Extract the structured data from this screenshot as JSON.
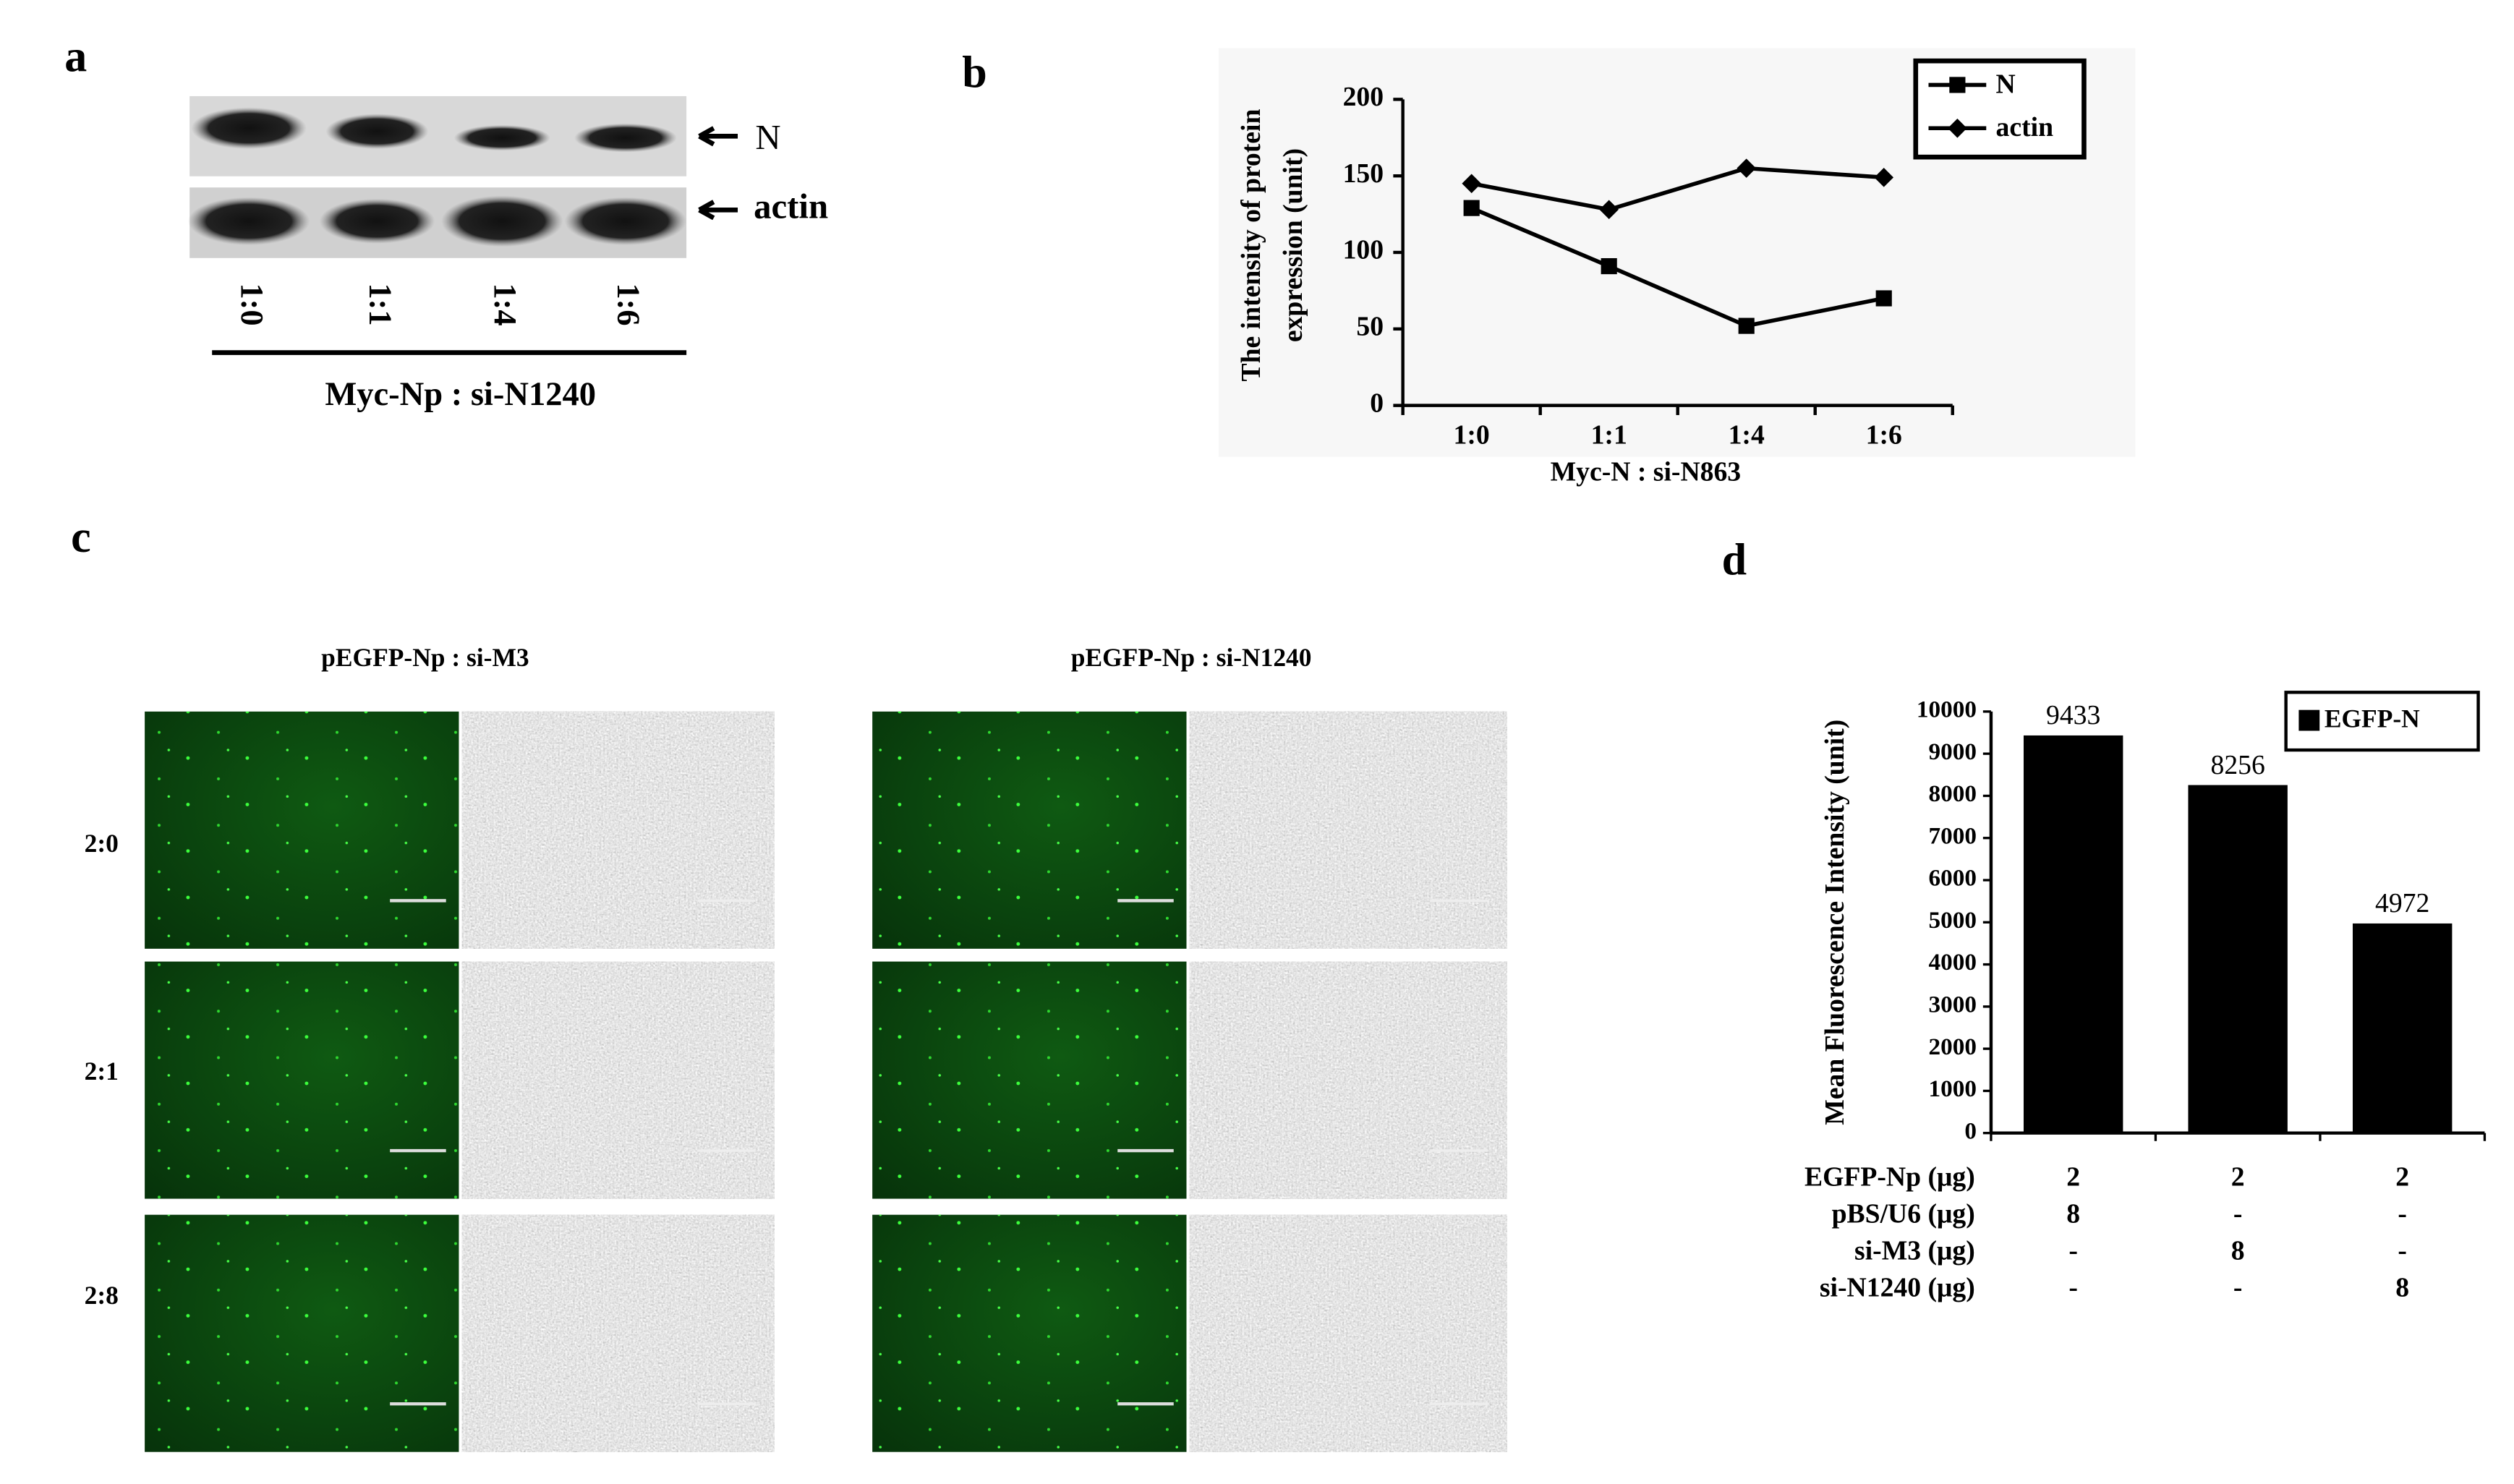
{
  "panel_labels": [
    "a",
    "b",
    "c",
    "d"
  ],
  "blot": {
    "bands": [
      "N",
      "actin"
    ],
    "lanes": [
      "1:0",
      "1:1",
      "1:4",
      "1:6"
    ],
    "xlabel": "Myc-Np : si-N1240"
  },
  "images": {
    "columns": [
      "pEGFP-Np : si-M3",
      "pEGFP-Np : si-N1240"
    ],
    "rows": [
      "2:0",
      "2:1",
      "2:8"
    ]
  },
  "chart_data": [
    {
      "type": "line",
      "ylabel": [
        "The intensity of protein",
        "expression (unit)"
      ],
      "xlabel": "Myc-N : si-N863",
      "categories": [
        "1:0",
        "1:1",
        "1:4",
        "1:6"
      ],
      "series": [
        {
          "name": "N",
          "color": "#000000",
          "marker": "square",
          "values": [
            129,
            91,
            52,
            70
          ]
        },
        {
          "name": "actin",
          "color": "#000000",
          "marker": "diamond",
          "values": [
            145,
            128,
            155,
            149
          ]
        }
      ],
      "ylim": [
        0,
        200
      ],
      "yticks": [
        0,
        50,
        100,
        150,
        200
      ],
      "legend": "top-right"
    },
    {
      "type": "bar",
      "ylabel": "Mean Fluorescence Intensity (unit)",
      "categories": [
        null,
        null,
        null
      ],
      "series": [
        {
          "name": "EGFP-N",
          "color": "#000000",
          "values": [
            9433,
            8256,
            4972
          ]
        }
      ],
      "ylim": [
        0,
        10000
      ],
      "yticks": [
        0,
        1000,
        2000,
        3000,
        4000,
        5000,
        6000,
        7000,
        8000,
        9000,
        10000
      ],
      "legend": "top-right",
      "condition_table": {
        "rows": [
          {
            "label": "EGFP-Np (μg)",
            "cells": [
              "2",
              "2",
              "2"
            ]
          },
          {
            "label": "pBS/U6 (μg)",
            "cells": [
              "8",
              "-",
              "-"
            ]
          },
          {
            "label": "si-M3 (μg)",
            "cells": [
              "-",
              "8",
              "-"
            ]
          },
          {
            "label": "si-N1240 (μg)",
            "cells": [
              "-",
              "-",
              "8"
            ]
          }
        ]
      }
    }
  ]
}
